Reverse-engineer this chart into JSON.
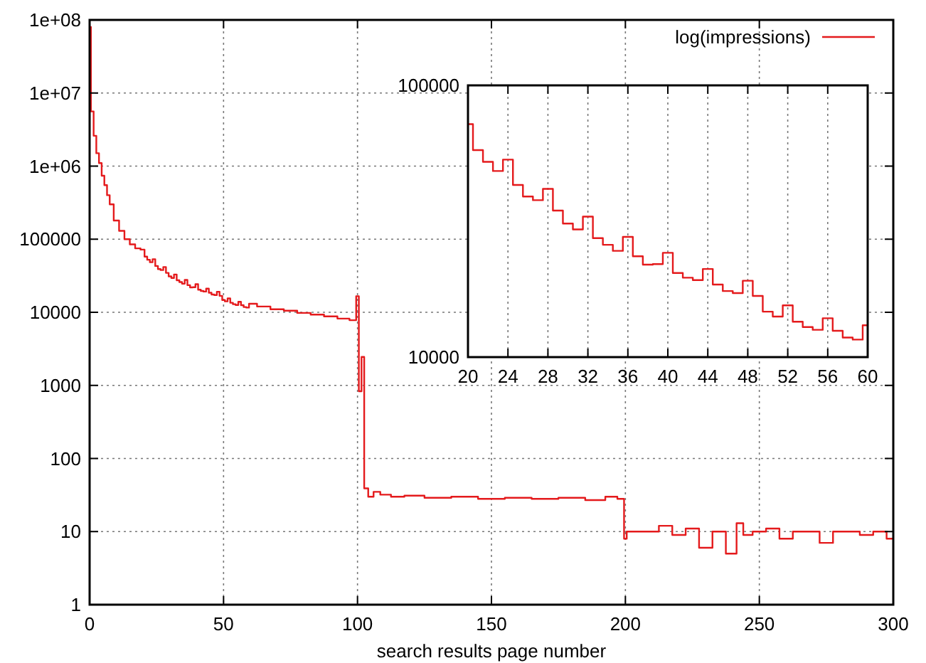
{
  "chart_data": [
    {
      "type": "step",
      "xlabel": "search results page number",
      "xlim": [
        0,
        300
      ],
      "ylim": [
        1,
        100000000
      ],
      "log": "y",
      "grid": true,
      "legend": "top right",
      "xticks": [
        0,
        50,
        100,
        150,
        200,
        250,
        300
      ],
      "yticks": [
        1,
        10,
        100,
        1000,
        10000,
        100000,
        {
          "value": 1000000,
          "label": "1e+06"
        },
        {
          "value": 10000000,
          "label": "1e+07"
        },
        {
          "value": 100000000,
          "label": "1e+08"
        }
      ],
      "series": [
        {
          "name": "log(impressions)",
          "color": "#e41a1c",
          "x": [
            0,
            1,
            2,
            3,
            4,
            5,
            6,
            7,
            8,
            10,
            12,
            14,
            16,
            18,
            20,
            21,
            22,
            23,
            24,
            25,
            26,
            27,
            28,
            29,
            30,
            31,
            32,
            33,
            34,
            35,
            36,
            37,
            38,
            39,
            40,
            41,
            42,
            43,
            44,
            45,
            46,
            47,
            48,
            49,
            50,
            51,
            52,
            53,
            54,
            55,
            56,
            57,
            58,
            59,
            60,
            65,
            70,
            75,
            80,
            85,
            90,
            95,
            99,
            100,
            101,
            102,
            103,
            105,
            107,
            110,
            115,
            120,
            130,
            140,
            150,
            160,
            170,
            180,
            190,
            195,
            199,
            200,
            201,
            205,
            210,
            215,
            220,
            225,
            230,
            235,
            240,
            243,
            245,
            250,
            255,
            260,
            265,
            270,
            275,
            280,
            285,
            290,
            295,
            300
          ],
          "values": [
            80000000,
            5600000,
            2600000,
            1500000,
            1100000,
            740000,
            550000,
            400000,
            300000,
            180000,
            130000,
            100000,
            85000,
            75000,
            72000,
            57800,
            52300,
            48400,
            53300,
            43000,
            39000,
            37800,
            41600,
            34600,
            31000,
            29500,
            32900,
            27400,
            25900,
            24600,
            27700,
            23500,
            21900,
            22000,
            24200,
            20400,
            19600,
            19200,
            21100,
            18500,
            17500,
            17200,
            19100,
            16800,
            14700,
            14100,
            15500,
            13500,
            12900,
            12600,
            13900,
            12500,
            11800,
            11600,
            13100,
            12000,
            11000,
            10500,
            9800,
            9300,
            8800,
            8200,
            7800,
            16600,
            830,
            2450,
            39,
            30,
            35,
            32,
            30,
            31,
            29,
            30,
            28,
            29,
            28,
            29,
            27,
            30,
            28,
            8,
            10,
            10,
            10,
            12,
            9,
            11,
            6,
            10,
            5,
            13,
            9,
            10,
            11,
            8,
            10,
            10,
            7,
            10,
            10,
            9,
            10,
            8
          ]
        }
      ]
    },
    {
      "type": "step",
      "xlim": [
        20,
        60
      ],
      "ylim": [
        10000,
        100000
      ],
      "log": "y",
      "grid": "x",
      "xticks": [
        20,
        24,
        28,
        32,
        36,
        40,
        44,
        48,
        52,
        56,
        60
      ],
      "yticks": [
        10000,
        100000
      ],
      "series": [
        {
          "color": "#e41a1c",
          "x": [
            20,
            21,
            22,
            23,
            24,
            25,
            26,
            27,
            28,
            29,
            30,
            31,
            32,
            33,
            34,
            35,
            36,
            37,
            38,
            39,
            40,
            41,
            42,
            43,
            44,
            45,
            46,
            47,
            48,
            49,
            50,
            51,
            52,
            53,
            54,
            55,
            56,
            57,
            58,
            59,
            60
          ],
          "values": [
            72000,
            57800,
            52300,
            48400,
            53300,
            43000,
            39000,
            37800,
            41600,
            34600,
            31000,
            29500,
            32900,
            27400,
            25900,
            24600,
            27700,
            23500,
            21900,
            22000,
            24200,
            20400,
            19600,
            19200,
            21100,
            18500,
            17500,
            17200,
            19100,
            16800,
            14700,
            14100,
            15500,
            13500,
            12900,
            12600,
            13900,
            12500,
            11800,
            11600,
            13100
          ]
        }
      ]
    }
  ]
}
